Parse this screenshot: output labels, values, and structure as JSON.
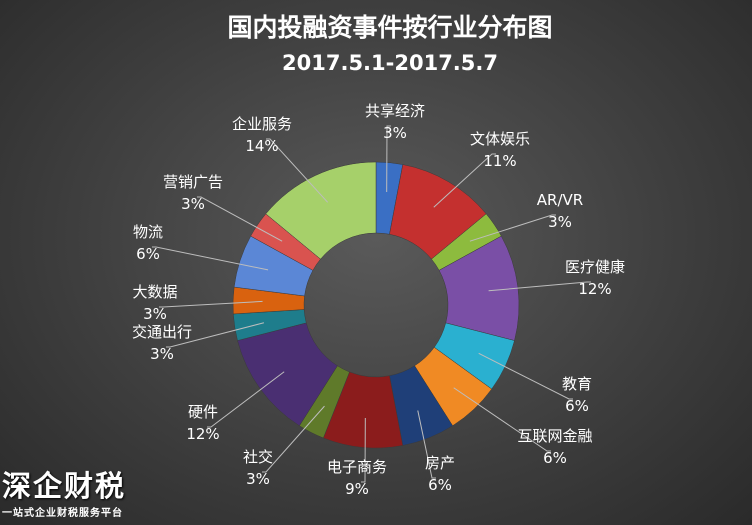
{
  "chart_data": {
    "type": "pie",
    "title": "国内投融资事件按行业分布图",
    "subtitle": "2017.5.1-2017.5.7",
    "slices": [
      {
        "name": "共享经济",
        "value": 3,
        "label": "3%",
        "color": "#3a6fc4"
      },
      {
        "name": "文体娱乐",
        "value": 11,
        "label": "11%",
        "color": "#c4302f"
      },
      {
        "name": "AR/VR",
        "value": 3,
        "label": "3%",
        "color": "#8dbb3e"
      },
      {
        "name": "医疗健康",
        "value": 12,
        "label": "12%",
        "color": "#7a4fa6"
      },
      {
        "name": "教育",
        "value": 6,
        "label": "6%",
        "color": "#2ab0d0"
      },
      {
        "name": "互联网金融",
        "value": 6,
        "label": "6%",
        "color": "#f08a24"
      },
      {
        "name": "房产",
        "value": 6,
        "label": "6%",
        "color": "#1f3f78"
      },
      {
        "name": "电子商务",
        "value": 9,
        "label": "9%",
        "color": "#8b1c1c"
      },
      {
        "name": "社交",
        "value": 3,
        "label": "3%",
        "color": "#5f7a2a"
      },
      {
        "name": "硬件",
        "value": 12,
        "label": "12%",
        "color": "#4a2f72"
      },
      {
        "name": "交通出行",
        "value": 3,
        "label": "3%",
        "color": "#1e7d8c"
      },
      {
        "name": "大数据",
        "value": 3,
        "label": "3%",
        "color": "#d9620f"
      },
      {
        "name": "物流",
        "value": 6,
        "label": "6%",
        "color": "#5b87d6"
      },
      {
        "name": "营销广告",
        "value": 3,
        "label": "3%",
        "color": "#d9534f"
      },
      {
        "name": "企业服务",
        "value": 14,
        "label": "14%",
        "color": "#a6d06a"
      }
    ],
    "legend": "none"
  },
  "watermark": {
    "main": "深企财税",
    "sub": "一站式企业财税服务平台"
  }
}
